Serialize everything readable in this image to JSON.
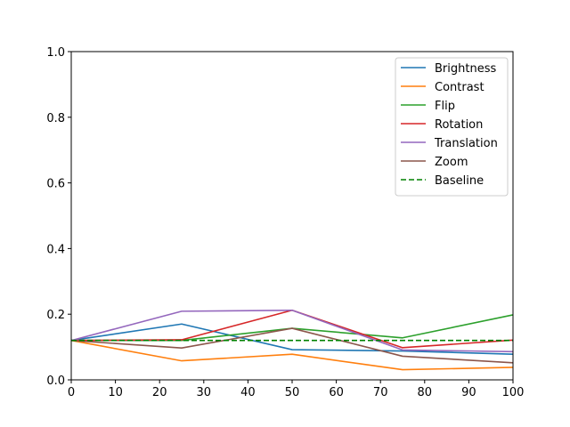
{
  "chart_data": {
    "type": "line",
    "title": "",
    "xlabel": "",
    "ylabel": "",
    "xlim": [
      0,
      100
    ],
    "ylim": [
      0,
      1.0
    ],
    "x_ticks": [
      0,
      10,
      20,
      30,
      40,
      50,
      60,
      70,
      80,
      90,
      100
    ],
    "y_ticks": [
      "0.0",
      "0.2",
      "0.4",
      "0.6",
      "0.8",
      "1.0"
    ],
    "grid": false,
    "legend_position": "top-right",
    "x": [
      0,
      25,
      50,
      75,
      100
    ],
    "series": [
      {
        "name": "Brightness",
        "color": "#1f77b4",
        "style": "solid",
        "values": [
          0.12,
          0.17,
          0.092,
          0.088,
          0.078
        ]
      },
      {
        "name": "Contrast",
        "color": "#ff7f0e",
        "style": "solid",
        "values": [
          0.12,
          0.058,
          0.078,
          0.031,
          0.038
        ]
      },
      {
        "name": "Flip",
        "color": "#2ca02c",
        "style": "solid",
        "values": [
          0.12,
          0.12,
          0.157,
          0.128,
          0.198
        ]
      },
      {
        "name": "Rotation",
        "color": "#d62728",
        "style": "solid",
        "values": [
          0.12,
          0.122,
          0.212,
          0.098,
          0.121
        ]
      },
      {
        "name": "Translation",
        "color": "#9467bd",
        "style": "solid",
        "values": [
          0.12,
          0.209,
          0.212,
          0.091,
          0.086
        ]
      },
      {
        "name": "Zoom",
        "color": "#8c564b",
        "style": "solid",
        "values": [
          0.12,
          0.097,
          0.157,
          0.072,
          0.052
        ]
      },
      {
        "name": "Baseline",
        "color": "#008000",
        "style": "dashed",
        "values": [
          0.12,
          0.12,
          0.12,
          0.12,
          0.12
        ]
      }
    ]
  }
}
